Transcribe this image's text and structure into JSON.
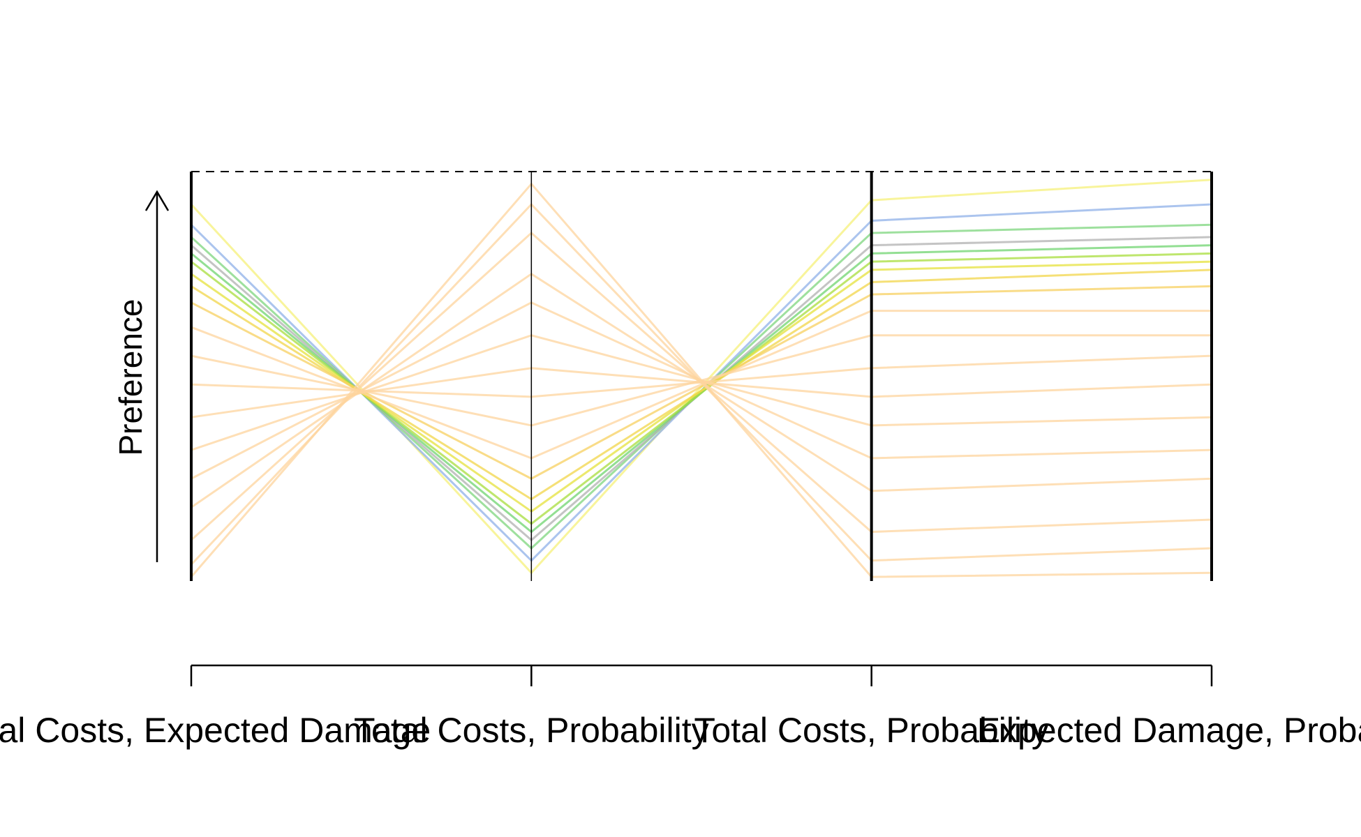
{
  "chart_data": {
    "type": "parallel",
    "ylabel": "Preference",
    "categories": [
      "Total Costs, Expected Damage",
      "Total Costs, Probability",
      "Total Costs, Probability",
      "Expected Damage, Probability"
    ],
    "ylim": [
      0,
      1
    ],
    "series": [
      {
        "color": "#f5f07a",
        "values": [
          0.92,
          0.02,
          0.93,
          0.98
        ]
      },
      {
        "color": "#8fb0e8",
        "values": [
          0.87,
          0.05,
          0.88,
          0.92
        ]
      },
      {
        "color": "#7ed67e",
        "values": [
          0.84,
          0.08,
          0.85,
          0.87
        ]
      },
      {
        "color": "#b0b0b0",
        "values": [
          0.82,
          0.1,
          0.82,
          0.84
        ]
      },
      {
        "color": "#6fd46f",
        "values": [
          0.8,
          0.12,
          0.8,
          0.82
        ]
      },
      {
        "color": "#a8dd3c",
        "values": [
          0.78,
          0.14,
          0.78,
          0.8
        ]
      },
      {
        "color": "#e6e23c",
        "values": [
          0.75,
          0.17,
          0.76,
          0.78
        ]
      },
      {
        "color": "#f2d64a",
        "values": [
          0.72,
          0.2,
          0.73,
          0.76
        ]
      },
      {
        "color": "#f7d060",
        "values": [
          0.68,
          0.25,
          0.7,
          0.72
        ]
      },
      {
        "color": "#fdd49e",
        "values": [
          0.62,
          0.3,
          0.66,
          0.66
        ]
      },
      {
        "color": "#fdd49e",
        "values": [
          0.55,
          0.38,
          0.6,
          0.6
        ]
      },
      {
        "color": "#fdd49e",
        "values": [
          0.48,
          0.45,
          0.52,
          0.55
        ]
      },
      {
        "color": "#fdd49e",
        "values": [
          0.4,
          0.52,
          0.45,
          0.48
        ]
      },
      {
        "color": "#fdd49e",
        "values": [
          0.32,
          0.6,
          0.38,
          0.4
        ]
      },
      {
        "color": "#fdd49e",
        "values": [
          0.25,
          0.68,
          0.3,
          0.32
        ]
      },
      {
        "color": "#fdd49e",
        "values": [
          0.18,
          0.75,
          0.22,
          0.25
        ]
      },
      {
        "color": "#fdd49e",
        "values": [
          0.1,
          0.85,
          0.12,
          0.15
        ]
      },
      {
        "color": "#fdd49e",
        "values": [
          0.04,
          0.92,
          0.05,
          0.08
        ]
      },
      {
        "color": "#fdd49e",
        "values": [
          0.01,
          0.97,
          0.01,
          0.02
        ]
      }
    ]
  }
}
